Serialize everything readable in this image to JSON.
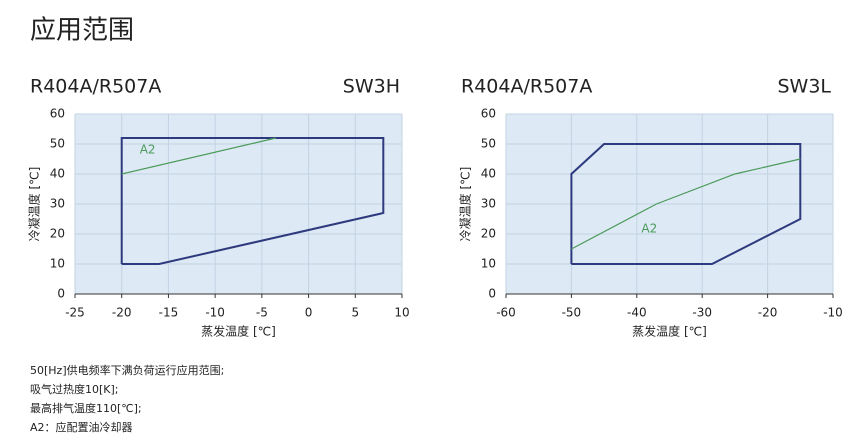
{
  "header": {
    "title": "应用范围"
  },
  "chart_data": [
    {
      "type": "line",
      "refrigerant": "R404A/R507A",
      "model": "SW3H",
      "x_label": "蒸发温度 [℃]",
      "y_label": "冷凝温度 [℃]",
      "xlim": [
        -25,
        10
      ],
      "xticks": [
        -25,
        -20,
        -15,
        -10,
        -5,
        0,
        5,
        10
      ],
      "ylim": [
        0,
        60
      ],
      "yticks": [
        0,
        10,
        20,
        30,
        40,
        50,
        60
      ],
      "grid": true,
      "series": [
        {
          "color": "#2e3a7e",
          "x": [
            -20,
            -20,
            8,
            8,
            -16,
            -20
          ],
          "values": [
            10,
            52,
            52,
            27,
            10,
            10
          ]
        },
        {
          "name": "A2",
          "color": "#4a9a5a",
          "x": [
            -20,
            -3.5
          ],
          "values": [
            40,
            52
          ]
        }
      ]
    },
    {
      "type": "line",
      "refrigerant": "R404A/R507A",
      "model": "SW3L",
      "x_label": "蒸发温度 [℃]",
      "y_label": "冷凝温度 [℃]",
      "xlim": [
        -60,
        -10
      ],
      "xticks": [
        -60,
        -50,
        -40,
        -30,
        -20,
        -10
      ],
      "ylim": [
        0,
        60
      ],
      "yticks": [
        0,
        10,
        20,
        30,
        40,
        50,
        60
      ],
      "grid": true,
      "series": [
        {
          "color": "#2e3a7e",
          "x": [
            -50,
            -50,
            -45,
            -15,
            -15,
            -28.5,
            -50
          ],
          "values": [
            10,
            40,
            50,
            50,
            25,
            10,
            10
          ]
        },
        {
          "name": "A2",
          "color": "#4a9a5a",
          "x": [
            -50,
            -37,
            -25,
            -15
          ],
          "values": [
            15,
            30,
            40,
            45
          ]
        }
      ]
    }
  ],
  "notes": [
    "50[Hz]供电频率下满负荷运行应用范围;",
    "吸气过热度10[K];",
    "最高排气温度110[℃];",
    "A2：应配置油冷却器"
  ]
}
